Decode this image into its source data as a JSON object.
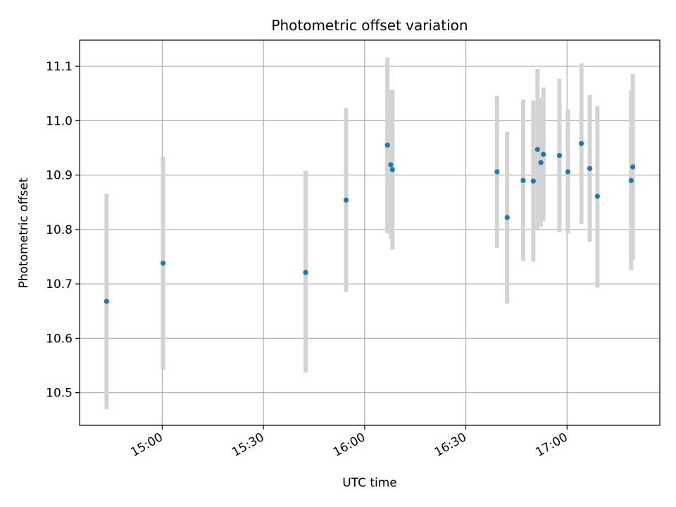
{
  "chart_data": {
    "type": "scatter",
    "title": "Photometric offset variation",
    "xlabel": "UTC time",
    "ylabel": "Photometric offset",
    "xlim": [
      "14:35:30",
      "17:27:30"
    ],
    "ylim": [
      10.44,
      11.148
    ],
    "x_ticks": [
      {
        "time": "15:00",
        "label": "15:00"
      },
      {
        "time": "15:30",
        "label": "15:30"
      },
      {
        "time": "16:00",
        "label": "16:00"
      },
      {
        "time": "16:30",
        "label": "16:30"
      },
      {
        "time": "17:00",
        "label": "17:00"
      }
    ],
    "y_ticks": [
      {
        "value": 10.5,
        "label": "10.5"
      },
      {
        "value": 10.6,
        "label": "10.6"
      },
      {
        "value": 10.7,
        "label": "10.7"
      },
      {
        "value": 10.8,
        "label": "10.8"
      },
      {
        "value": 10.9,
        "label": "10.9"
      },
      {
        "value": 11.0,
        "label": "11.0"
      },
      {
        "value": 11.1,
        "label": "11.1"
      }
    ],
    "grid": true,
    "points": [
      {
        "time": "14:43:30",
        "y": 10.668,
        "y_low": 10.47,
        "y_high": 10.866
      },
      {
        "time": "15:00:15",
        "y": 10.738,
        "y_low": 10.542,
        "y_high": 10.934
      },
      {
        "time": "15:42:30",
        "y": 10.721,
        "y_low": 10.537,
        "y_high": 10.908
      },
      {
        "time": "15:54:30",
        "y": 10.854,
        "y_low": 10.685,
        "y_high": 11.023
      },
      {
        "time": "16:06:45",
        "y": 10.955,
        "y_low": 10.793,
        "y_high": 11.116
      },
      {
        "time": "16:07:45",
        "y": 10.919,
        "y_low": 10.783,
        "y_high": 11.057
      },
      {
        "time": "16:08:15",
        "y": 10.91,
        "y_low": 10.763,
        "y_high": 11.057
      },
      {
        "time": "16:39:15",
        "y": 10.906,
        "y_low": 10.766,
        "y_high": 11.046
      },
      {
        "time": "16:42:15",
        "y": 10.822,
        "y_low": 10.664,
        "y_high": 10.98
      },
      {
        "time": "16:47:00",
        "y": 10.89,
        "y_low": 10.742,
        "y_high": 11.039
      },
      {
        "time": "16:50:00",
        "y": 10.889,
        "y_low": 10.741,
        "y_high": 11.037
      },
      {
        "time": "16:51:15",
        "y": 10.947,
        "y_low": 10.801,
        "y_high": 11.095
      },
      {
        "time": "16:52:15",
        "y": 10.923,
        "y_low": 10.805,
        "y_high": 11.042
      },
      {
        "time": "16:53:00",
        "y": 10.938,
        "y_low": 10.816,
        "y_high": 11.061
      },
      {
        "time": "16:57:45",
        "y": 10.936,
        "y_low": 10.795,
        "y_high": 11.077
      },
      {
        "time": "17:00:15",
        "y": 10.906,
        "y_low": 10.793,
        "y_high": 11.021
      },
      {
        "time": "17:04:15",
        "y": 10.958,
        "y_low": 10.81,
        "y_high": 11.105
      },
      {
        "time": "17:06:45",
        "y": 10.912,
        "y_low": 10.777,
        "y_high": 11.047
      },
      {
        "time": "17:09:00",
        "y": 10.861,
        "y_low": 10.693,
        "y_high": 11.027
      },
      {
        "time": "17:19:00",
        "y": 10.89,
        "y_low": 10.725,
        "y_high": 11.055
      },
      {
        "time": "17:19:30",
        "y": 10.915,
        "y_low": 10.744,
        "y_high": 11.086
      }
    ],
    "colors": {
      "point": "#1f77b4",
      "errorbar": "#d3d3d3",
      "grid": "#b0b0b0",
      "axes": "#000000"
    }
  }
}
